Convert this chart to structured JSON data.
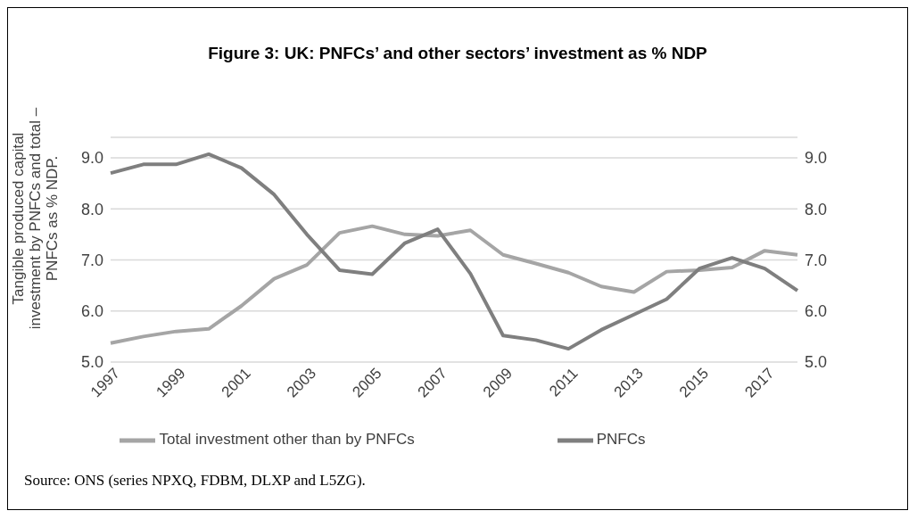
{
  "chart_data": {
    "type": "line",
    "title": "Figure 3: UK: PNFCs’ and other sectors’ investment as % NDP",
    "ylabel": "Tangible produced capital investment by PNFCs and total – PNFCs as % NDP.",
    "categories": [
      "1997",
      null,
      "1999",
      null,
      "2001",
      null,
      "2003",
      null,
      "2005",
      null,
      "2007",
      null,
      "2009",
      null,
      "2011",
      null,
      "2013",
      null,
      "2015",
      null,
      "2017",
      null
    ],
    "series": [
      {
        "name": "Total investment other than by PNFCs",
        "color": "#a5a5a5",
        "values": [
          5.37,
          5.5,
          5.6,
          5.65,
          6.1,
          6.63,
          6.9,
          7.53,
          7.66,
          7.5,
          7.47,
          7.58,
          7.1,
          6.93,
          6.75,
          6.48,
          6.37,
          6.77,
          6.8,
          6.85,
          7.18,
          7.1
        ]
      },
      {
        "name": "PNFCs",
        "color": "#7f7f7f",
        "values": [
          8.7,
          8.87,
          8.87,
          9.07,
          8.8,
          8.28,
          7.5,
          6.8,
          6.72,
          7.33,
          7.6,
          6.73,
          5.52,
          5.43,
          5.26,
          5.63,
          5.93,
          6.23,
          6.83,
          7.04,
          6.83,
          6.4
        ]
      }
    ],
    "ylim": [
      5,
      9.4
    ],
    "yticks": [
      {
        "value": 5,
        "label": "5.0"
      },
      {
        "value": 6,
        "label": "6.0"
      },
      {
        "value": 7,
        "label": "7.0"
      },
      {
        "value": 8,
        "label": "8.0"
      },
      {
        "value": 9,
        "label": "9.0"
      }
    ],
    "y2lim": [
      5,
      9.4
    ],
    "y2ticks": [
      {
        "value": 5,
        "label": "5.0"
      },
      {
        "value": 6,
        "label": "6.0"
      },
      {
        "value": 7,
        "label": "7.0"
      },
      {
        "value": 8,
        "label": "8.0"
      },
      {
        "value": 9,
        "label": "9.0"
      }
    ],
    "grid": "y",
    "legend": "bottom",
    "marker": "none",
    "line_style": "solid",
    "annotations": [
      "Source: ONS (series NPXQ, FDBM, DLXP and L5ZG)."
    ]
  }
}
